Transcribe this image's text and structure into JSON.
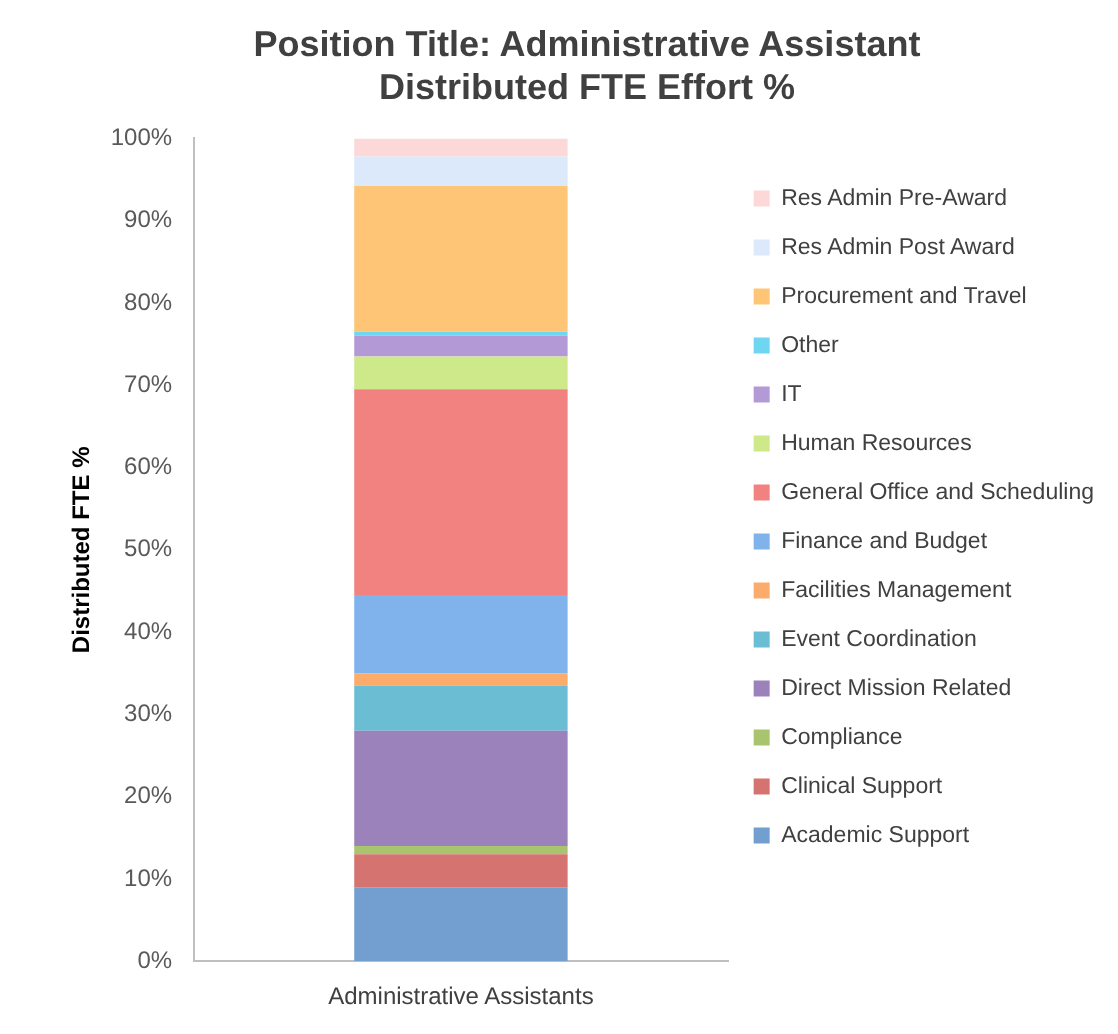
{
  "chart_data": {
    "type": "bar",
    "title": "Position Title: Administrative Assistant",
    "subtitle": "Distributed FTE Effort %",
    "ylabel": "Distributed FTE %",
    "categories": [
      "Administrative Assistants"
    ],
    "stacked": true,
    "legend": "right",
    "grid": false,
    "ylim": [
      0,
      100
    ],
    "yticks": [
      {
        "value": 0,
        "label": "0%"
      },
      {
        "value": 10,
        "label": "10%"
      },
      {
        "value": 20,
        "label": "20%"
      },
      {
        "value": 30,
        "label": "30%"
      },
      {
        "value": 40,
        "label": "40%"
      },
      {
        "value": 50,
        "label": "50%"
      },
      {
        "value": 60,
        "label": "60%"
      },
      {
        "value": 70,
        "label": "70%"
      },
      {
        "value": 80,
        "label": "80%"
      },
      {
        "value": 90,
        "label": "90%"
      },
      {
        "value": 100,
        "label": "100%"
      }
    ],
    "series": [
      {
        "name": "Academic Support",
        "color": "#729fcf",
        "values": [
          9
        ]
      },
      {
        "name": "Clinical Support",
        "color": "#d47370",
        "values": [
          4
        ]
      },
      {
        "name": "Compliance",
        "color": "#a9c46f",
        "values": [
          1
        ]
      },
      {
        "name": "Direct Mission Related",
        "color": "#9b82ba",
        "values": [
          14
        ]
      },
      {
        "name": "Event Coordination",
        "color": "#6bbdd4",
        "values": [
          5.5
        ]
      },
      {
        "name": "Facilities Management",
        "color": "#fbab6a",
        "values": [
          1.5
        ]
      },
      {
        "name": "Finance and Budget",
        "color": "#80b2ec",
        "values": [
          9.5
        ]
      },
      {
        "name": "General Office and Scheduling",
        "color": "#f2827f",
        "values": [
          25
        ]
      },
      {
        "name": "Human Resources",
        "color": "#cde98a",
        "values": [
          4
        ]
      },
      {
        "name": "IT",
        "color": "#b39ad6",
        "values": [
          2.5
        ]
      },
      {
        "name": "Other",
        "color": "#6fd6f2",
        "values": [
          0.5
        ]
      },
      {
        "name": "Procurement and Travel",
        "color": "#fec576",
        "values": [
          17.7
        ]
      },
      {
        "name": "Res Admin Post Award",
        "color": "#dce9fb",
        "values": [
          3.6
        ]
      },
      {
        "name": "Res Admin Pre-Award",
        "color": "#fdd8d9",
        "values": [
          2.2
        ]
      }
    ]
  }
}
